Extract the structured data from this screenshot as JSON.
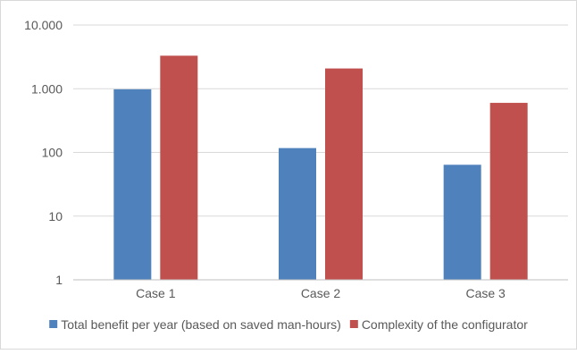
{
  "chart_data": {
    "type": "bar",
    "title": "",
    "xlabel": "",
    "ylabel": "",
    "yscale": "log",
    "ylim": [
      1,
      10000
    ],
    "yticks": [
      1,
      10,
      100,
      1000,
      10000
    ],
    "ytick_labels": [
      "1",
      "10",
      "100",
      "1.000",
      "10.000"
    ],
    "grid": true,
    "legend_position": "bottom",
    "categories": [
      "Case 1",
      "Case 2",
      "Case 3"
    ],
    "series": [
      {
        "name": "Total benefit per year (based on saved man-hours)",
        "color": "#4f81bd",
        "values": [
          980,
          117,
          64
        ]
      },
      {
        "name": "Complexity of the configurator",
        "color": "#c0504d",
        "values": [
          3300,
          2080,
          600
        ]
      }
    ]
  }
}
